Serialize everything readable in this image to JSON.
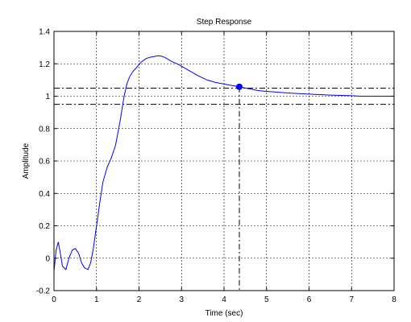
{
  "chart_data": {
    "type": "line",
    "title": "Step Response",
    "xlabel": "Time (sec)",
    "ylabel": "Amplitude",
    "xlim": [
      0,
      8
    ],
    "ylim": [
      -0.2,
      1.4
    ],
    "x_ticks": [
      0,
      1,
      2,
      3,
      4,
      5,
      6,
      7,
      8
    ],
    "x_tick_labels": [
      "0",
      "1",
      "2",
      "3",
      "4",
      "5",
      "6",
      "7",
      "8"
    ],
    "y_ticks": [
      -0.2,
      0,
      0.2,
      0.4,
      0.6,
      0.8,
      1,
      1.2,
      1.4
    ],
    "y_tick_labels": [
      "-0.2",
      "0",
      "0.2",
      "0.4",
      "0.6",
      "0.8",
      "1",
      "1.2",
      "1.4"
    ],
    "grid": true,
    "colors": {
      "line": "#0000ff",
      "grid": "#000000",
      "bounds": "#000000",
      "marker": "#0000ff"
    },
    "series": [
      {
        "x": [
          0,
          0.05,
          0.1,
          0.15,
          0.2,
          0.28,
          0.35,
          0.43,
          0.5,
          0.58,
          0.65,
          0.72,
          0.8,
          0.86,
          0.92,
          1.0,
          1.08,
          1.15,
          1.25,
          1.35,
          1.45,
          1.55,
          1.65,
          1.72,
          1.78,
          1.85,
          1.95,
          2.05,
          2.15,
          2.25,
          2.35,
          2.45,
          2.52,
          2.6,
          2.7,
          2.8,
          2.9,
          3.0,
          3.2,
          3.4,
          3.6,
          3.8,
          4.0,
          4.2,
          4.36,
          4.5,
          4.8,
          5.0,
          5.5,
          6.0,
          6.5,
          7.0,
          7.2,
          7.5,
          8.0
        ],
        "y": [
          -0.08,
          0.05,
          0.1,
          0.03,
          -0.05,
          -0.07,
          0.0,
          0.05,
          0.06,
          0.03,
          -0.03,
          -0.06,
          -0.07,
          -0.03,
          0.05,
          0.2,
          0.35,
          0.47,
          0.56,
          0.62,
          0.7,
          0.84,
          1.0,
          1.08,
          1.12,
          1.15,
          1.18,
          1.21,
          1.23,
          1.24,
          1.245,
          1.25,
          1.248,
          1.24,
          1.225,
          1.21,
          1.2,
          1.185,
          1.155,
          1.125,
          1.1,
          1.085,
          1.075,
          1.065,
          1.058,
          1.05,
          1.035,
          1.03,
          1.02,
          1.013,
          1.007,
          1.003,
          1.0,
          1.0,
          1.0
        ]
      }
    ],
    "settling_bounds": [
      1.05,
      0.95
    ],
    "settling_marker": {
      "x": 4.36,
      "y": 1.058
    },
    "steady_state": 1.0
  }
}
